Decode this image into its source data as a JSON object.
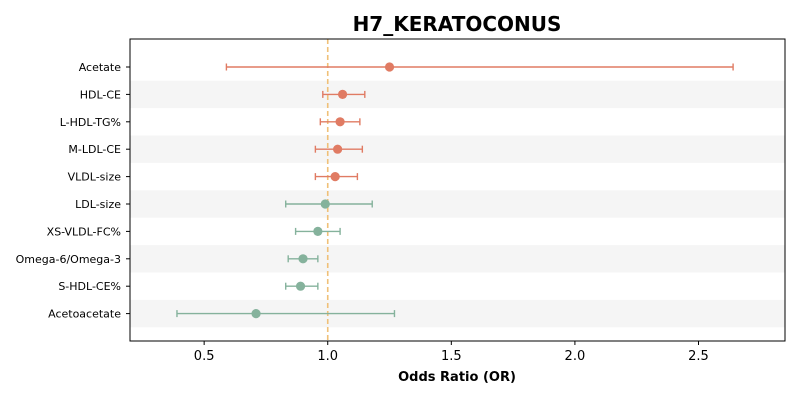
{
  "chart_data": {
    "type": "forest",
    "title": "H7_KERATOCONUS",
    "xlabel": "Odds Ratio (OR)",
    "ylabel": "",
    "xlim": [
      0.2,
      2.85
    ],
    "xticks": [
      0.5,
      1.0,
      1.5,
      2.0,
      2.5
    ],
    "xtick_labels": [
      "0.5",
      "1.0",
      "1.5",
      "2.0",
      "2.5"
    ],
    "reference_line": 1.0,
    "grid": false,
    "alternating_row_shading": true,
    "colors": {
      "risk": "#e07b63",
      "protective": "#85b29c",
      "reference_line": "#f0c078",
      "row_shade": "#f5f5f5",
      "axis": "#000000"
    },
    "points": [
      {
        "label": "Acetate",
        "or": 1.25,
        "ci_low": 0.59,
        "ci_high": 2.64,
        "group": "risk"
      },
      {
        "label": "HDL-CE",
        "or": 1.06,
        "ci_low": 0.98,
        "ci_high": 1.15,
        "group": "risk"
      },
      {
        "label": "L-HDL-TG%",
        "or": 1.05,
        "ci_low": 0.97,
        "ci_high": 1.13,
        "group": "risk"
      },
      {
        "label": "M-LDL-CE",
        "or": 1.04,
        "ci_low": 0.95,
        "ci_high": 1.14,
        "group": "risk"
      },
      {
        "label": "VLDL-size",
        "or": 1.03,
        "ci_low": 0.95,
        "ci_high": 1.12,
        "group": "risk"
      },
      {
        "label": "LDL-size",
        "or": 0.99,
        "ci_low": 0.83,
        "ci_high": 1.18,
        "group": "protective"
      },
      {
        "label": "XS-VLDL-FC%",
        "or": 0.96,
        "ci_low": 0.87,
        "ci_high": 1.05,
        "group": "protective"
      },
      {
        "label": "Omega-6/Omega-3",
        "or": 0.9,
        "ci_low": 0.84,
        "ci_high": 0.96,
        "group": "protective"
      },
      {
        "label": "S-HDL-CE%",
        "or": 0.89,
        "ci_low": 0.83,
        "ci_high": 0.96,
        "group": "protective"
      },
      {
        "label": "Acetoacetate",
        "or": 0.71,
        "ci_low": 0.39,
        "ci_high": 1.27,
        "group": "protective"
      }
    ]
  }
}
